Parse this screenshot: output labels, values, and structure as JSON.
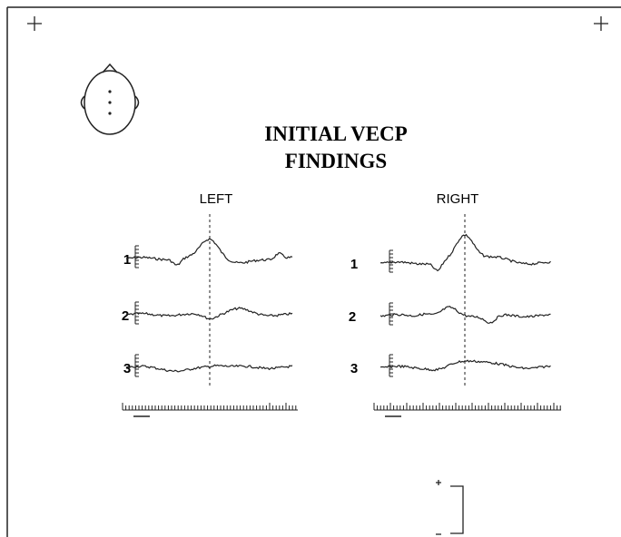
{
  "title": [
    "INITIAL VECP",
    "FINDINGS"
  ],
  "panels": [
    {
      "label": "LEFT",
      "traces": [
        "1",
        "2",
        "3"
      ]
    },
    {
      "label": "RIGHT",
      "traces": [
        "1",
        "2",
        "3"
      ]
    }
  ]
}
